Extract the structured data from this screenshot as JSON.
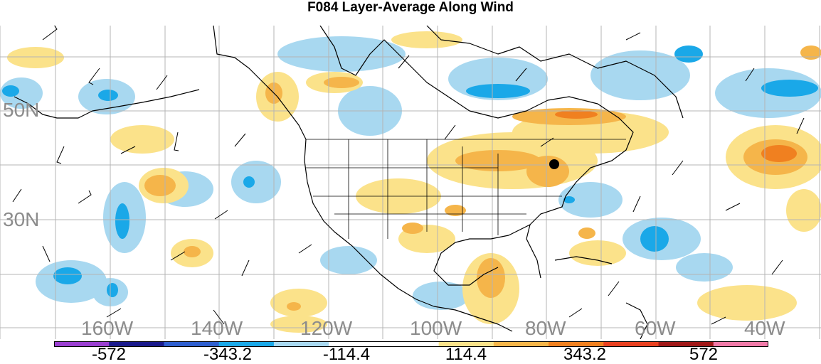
{
  "title": "F084 Layer-Average Along Wind",
  "lat_labels": [
    "50N",
    "30N"
  ],
  "lon_labels": [
    "160W",
    "140W",
    "120W",
    "100W",
    "80W",
    "60W",
    "40W"
  ],
  "colorbar": {
    "colors": [
      "#9a3fd0",
      "#1a1a8c",
      "#2f5fcf",
      "#1aa8e8",
      "#a8d8f0",
      "#ffffff",
      "#ffffff",
      "#fbe28a",
      "#f5b54a",
      "#f08020",
      "#e84020",
      "#a01818",
      "#f07aa8"
    ],
    "tick_labels": [
      "-572",
      "-343.2",
      "-114.4",
      "114.4",
      "343.2",
      "572"
    ]
  },
  "marker": "location-dot"
}
